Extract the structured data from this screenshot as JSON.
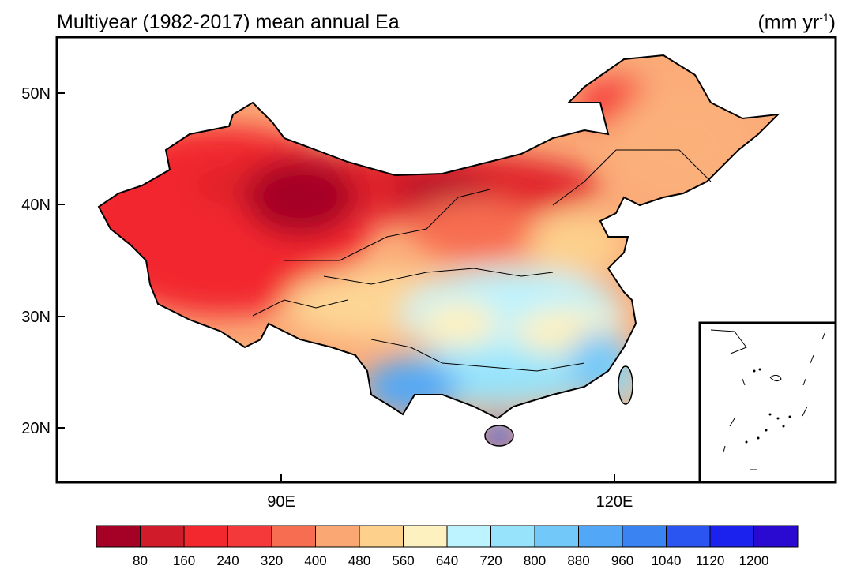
{
  "title": "Multiyear (1982-2017) mean annual Ea",
  "units": {
    "base": "(mm yr",
    "exp": "-1",
    "close": ")"
  },
  "map": {
    "region": "China",
    "lat_ticks": [
      "50N",
      "40N",
      "30N",
      "20N"
    ],
    "lon_ticks": [
      "90E",
      "120E"
    ],
    "inset": "South China Sea islands"
  },
  "colorbar": {
    "labels": [
      "80",
      "160",
      "240",
      "320",
      "400",
      "480",
      "560",
      "640",
      "720",
      "800",
      "880",
      "960",
      "1040",
      "1120",
      "1200"
    ],
    "colors": [
      "#a50026",
      "#d01c2a",
      "#f2282e",
      "#f5393a",
      "#f76d51",
      "#fba774",
      "#fdd08c",
      "#fef1c0",
      "#bdf3fe",
      "#97e3fb",
      "#72c8f9",
      "#52a8f6",
      "#3a83f3",
      "#2a55f0",
      "#1c22ed",
      "#2a0ad0"
    ]
  }
}
